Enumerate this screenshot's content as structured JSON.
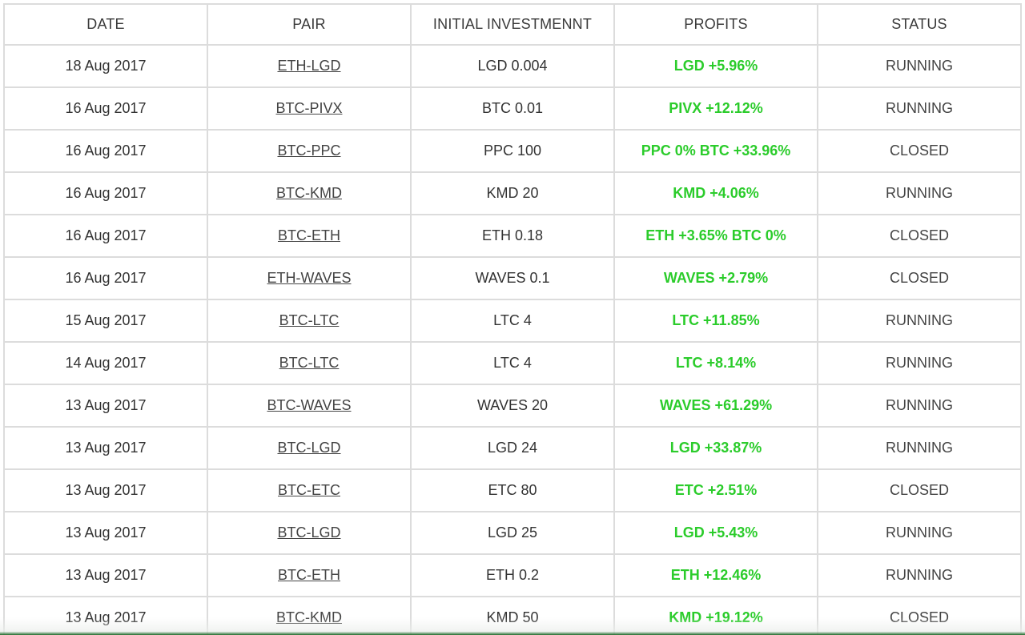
{
  "colors": {
    "profit": "#2bcc2b",
    "border": "#dcdcdc",
    "text": "#333333"
  },
  "columns": [
    "DATE",
    "PAIR",
    "INITIAL INVESTMENNT",
    "PROFITS",
    "STATUS"
  ],
  "rows": [
    {
      "date": "18 Aug 2017",
      "pair": "ETH-LGD",
      "investment": "LGD 0.004",
      "profit": "LGD +5.96%",
      "status": "RUNNING"
    },
    {
      "date": "16 Aug 2017",
      "pair": "BTC-PIVX",
      "investment": "BTC 0.01",
      "profit": "PIVX +12.12%",
      "status": "RUNNING"
    },
    {
      "date": "16 Aug 2017",
      "pair": "BTC-PPC",
      "investment": "PPC 100",
      "profit": "PPC 0%  BTC +33.96%",
      "status": "CLOSED"
    },
    {
      "date": "16 Aug 2017",
      "pair": "BTC-KMD",
      "investment": "KMD 20",
      "profit": "KMD +4.06%",
      "status": "RUNNING"
    },
    {
      "date": "16 Aug 2017",
      "pair": "BTC-ETH",
      "investment": "ETH 0.18",
      "profit": "ETH +3.65%  BTC 0%",
      "status": "CLOSED"
    },
    {
      "date": "16 Aug 2017",
      "pair": "ETH-WAVES",
      "investment": "WAVES 0.1",
      "profit": "WAVES +2.79%",
      "status": "CLOSED"
    },
    {
      "date": "15 Aug 2017",
      "pair": "BTC-LTC",
      "investment": "LTC 4",
      "profit": "LTC +11.85%",
      "status": "RUNNING"
    },
    {
      "date": "14 Aug 2017",
      "pair": "BTC-LTC",
      "investment": "LTC 4",
      "profit": "LTC +8.14%",
      "status": "RUNNING"
    },
    {
      "date": "13 Aug 2017",
      "pair": "BTC-WAVES",
      "investment": "WAVES 20",
      "profit": "WAVES +61.29%",
      "status": "RUNNING"
    },
    {
      "date": "13 Aug 2017",
      "pair": "BTC-LGD",
      "investment": "LGD 24",
      "profit": "LGD +33.87%",
      "status": "RUNNING"
    },
    {
      "date": "13 Aug 2017",
      "pair": "BTC-ETC",
      "investment": "ETC 80",
      "profit": "ETC +2.51%",
      "status": "CLOSED"
    },
    {
      "date": "13 Aug 2017",
      "pair": "BTC-LGD",
      "investment": "LGD 25",
      "profit": "LGD +5.43%",
      "status": "RUNNING"
    },
    {
      "date": "13 Aug 2017",
      "pair": "BTC-ETH",
      "investment": "ETH 0.2",
      "profit": "ETH +12.46%",
      "status": "RUNNING"
    },
    {
      "date": "13 Aug 2017",
      "pair": "BTC-KMD",
      "investment": "KMD 50",
      "profit": "KMD +19.12%",
      "status": "CLOSED"
    }
  ]
}
